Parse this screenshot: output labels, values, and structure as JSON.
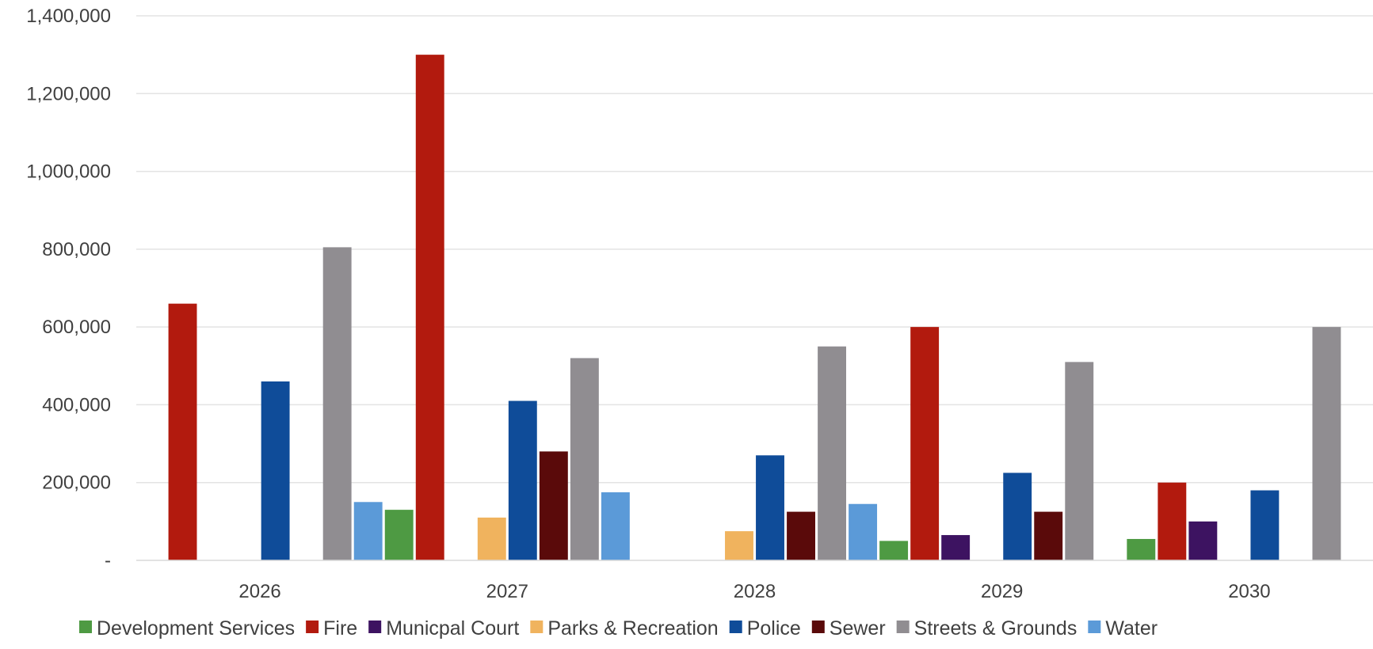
{
  "chart_data": {
    "type": "bar",
    "categories": [
      "2026",
      "2027",
      "2028",
      "2029",
      "2030"
    ],
    "ylim": [
      0,
      1400000
    ],
    "y_ticks": [
      0,
      200000,
      400000,
      600000,
      800000,
      1000000,
      1200000,
      1400000
    ],
    "y_tick_labels": [
      "-",
      "200,000",
      "400,000",
      "600,000",
      "800,000",
      "1,000,000",
      "1,200,000",
      "1,400,000"
    ],
    "grid": true,
    "legend_position": "bottom",
    "series": [
      {
        "name": "Development Services",
        "color": "#4e9a43",
        "values": [
          0,
          130000,
          0,
          50000,
          55000
        ]
      },
      {
        "name": "Fire",
        "color": "#b21a0e",
        "values": [
          660000,
          1300000,
          0,
          600000,
          200000
        ]
      },
      {
        "name": "Municpal Court",
        "color": "#3d1361",
        "values": [
          0,
          0,
          0,
          65000,
          100000
        ]
      },
      {
        "name": "Parks & Recreation",
        "color": "#f0b35e",
        "values": [
          0,
          110000,
          75000,
          0,
          0
        ]
      },
      {
        "name": "Police",
        "color": "#0f4c99",
        "values": [
          460000,
          410000,
          270000,
          225000,
          180000
        ]
      },
      {
        "name": "Sewer",
        "color": "#5a0a0a",
        "values": [
          0,
          280000,
          125000,
          125000,
          0
        ]
      },
      {
        "name": "Streets & Grounds",
        "color": "#908d91",
        "values": [
          805000,
          520000,
          550000,
          510000,
          600000
        ]
      },
      {
        "name": "Water",
        "color": "#5b9ad8",
        "values": [
          150000,
          175000,
          145000,
          0,
          0
        ]
      }
    ]
  }
}
